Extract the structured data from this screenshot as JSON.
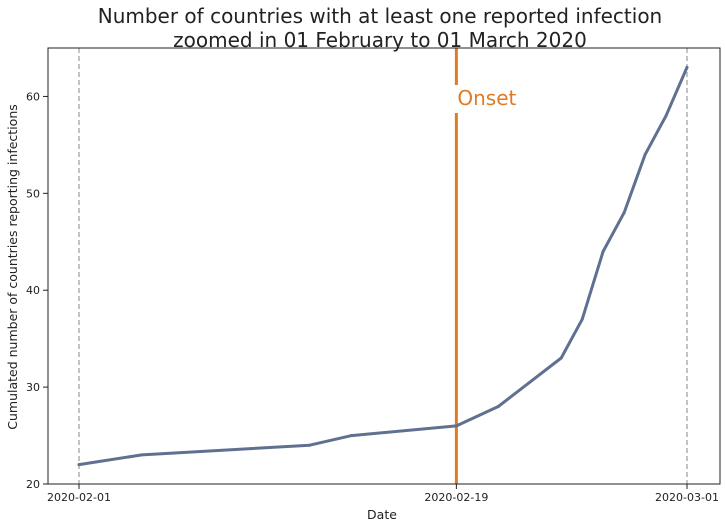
{
  "chart_data": {
    "type": "line",
    "title_lines": [
      "Number of countries with at least one reported infection",
      "zoomed in 01 February to 01 March 2020"
    ],
    "xlabel": "Date",
    "ylabel": "Cumulated number of countries reporting infections",
    "x_tick_labels": [
      "2020-02-01",
      "2020-02-19",
      "2020-03-01"
    ],
    "y_ticks": [
      20,
      30,
      40,
      50,
      60
    ],
    "ylim": [
      20,
      65
    ],
    "xlim": [
      "2020-02-01",
      "2020-03-01"
    ],
    "grid": false,
    "series": [
      {
        "color": "#5f7090",
        "points": [
          {
            "x": "2020-02-01",
            "y": 22
          },
          {
            "x": "2020-02-04",
            "y": 23
          },
          {
            "x": "2020-02-12",
            "y": 24
          },
          {
            "x": "2020-02-14",
            "y": 25
          },
          {
            "x": "2020-02-19",
            "y": 26
          },
          {
            "x": "2020-02-21",
            "y": 28
          },
          {
            "x": "2020-02-24",
            "y": 33
          },
          {
            "x": "2020-02-25",
            "y": 37
          },
          {
            "x": "2020-02-26",
            "y": 44
          },
          {
            "x": "2020-02-27",
            "y": 48
          },
          {
            "x": "2020-02-28",
            "y": 54
          },
          {
            "x": "2020-02-29",
            "y": 58
          },
          {
            "x": "2020-03-01",
            "y": 63
          }
        ]
      }
    ],
    "annotations": [
      {
        "type": "vline",
        "x": "2020-02-19",
        "label": "Onset",
        "color": "#e07b24"
      }
    ],
    "reference_lines": [
      {
        "type": "vline",
        "x": "2020-02-01",
        "style": "dashed",
        "color": "#b0b0b0"
      },
      {
        "type": "vline",
        "x": "2020-03-01",
        "style": "dashed",
        "color": "#b0b0b0"
      }
    ]
  }
}
